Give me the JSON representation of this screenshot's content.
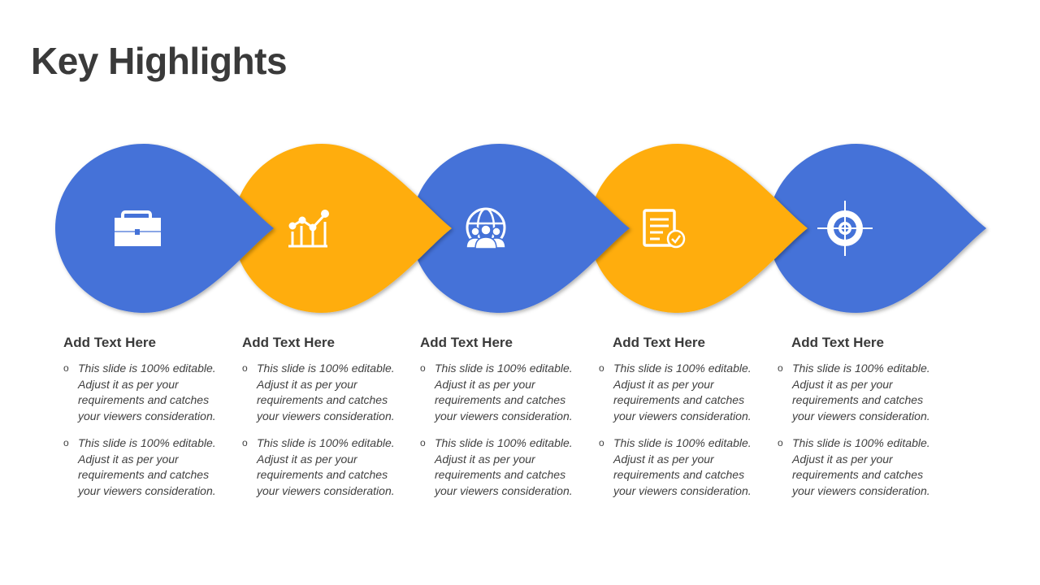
{
  "title": "Key Highlights",
  "colors": {
    "blue": "#4472D8",
    "orange": "#FFAD0A",
    "text": "#3F3F3F"
  },
  "steps": [
    {
      "icon": "briefcase-icon",
      "color": "blue",
      "heading": "Add Text Here",
      "bullets": [
        "This slide is 100% editable. Adjust it as per your requirements and catches your viewers consideration.",
        "This slide is 100% editable. Adjust it as per your requirements and catches your viewers consideration."
      ]
    },
    {
      "icon": "growth-chart-icon",
      "color": "orange",
      "heading": "Add Text Here",
      "bullets": [
        "This slide is 100% editable. Adjust it as per your requirements and catches your viewers consideration.",
        "This slide is 100% editable. Adjust it as per your requirements and catches your viewers consideration."
      ]
    },
    {
      "icon": "global-team-icon",
      "color": "blue",
      "heading": "Add Text Here",
      "bullets": [
        "This slide is 100% editable. Adjust it as per your requirements and catches your viewers consideration.",
        "This slide is 100% editable. Adjust it as per your requirements and catches your viewers consideration."
      ]
    },
    {
      "icon": "approved-document-icon",
      "color": "orange",
      "heading": "Add Text Here",
      "bullets": [
        "This slide is 100% editable. Adjust it as per your requirements and catches your viewers consideration.",
        "This slide is 100% editable. Adjust it as per your requirements and catches your viewers consideration."
      ]
    },
    {
      "icon": "target-icon",
      "color": "blue",
      "heading": "Add Text Here",
      "bullets": [
        "This slide is 100% editable. Adjust it as per your requirements and catches your viewers consideration.",
        "This slide is 100% editable. Adjust it as per your requirements and catches your viewers consideration."
      ]
    }
  ]
}
